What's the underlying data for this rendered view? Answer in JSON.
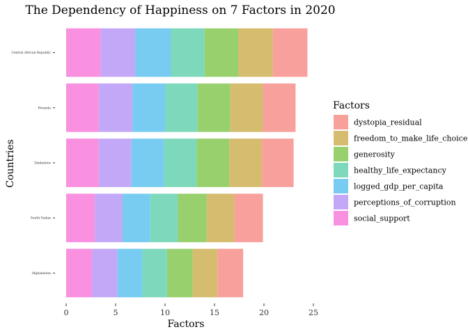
{
  "chart_data": {
    "type": "bar",
    "orientation": "horizontal",
    "stacked": true,
    "title": "The Dependency of Happiness on 7 Factors in 2020",
    "xlabel": "Factors",
    "ylabel": "Countries",
    "xlim": [
      0,
      25
    ],
    "xticks": [
      0,
      5,
      10,
      15,
      20,
      25
    ],
    "grid": false,
    "legend_position": "right",
    "legend_title": "Factors",
    "categories": [
      "Central African Republic",
      "Rwanda",
      "Zimbabwe",
      "South Sudan",
      "Afghanistan"
    ],
    "series": [
      {
        "name": "social_support",
        "color": "#F990E0",
        "values": [
          3.5,
          3.3,
          3.3,
          2.9,
          2.6
        ]
      },
      {
        "name": "perceptions_of_corruption",
        "color": "#C3A8F8",
        "values": [
          3.5,
          3.4,
          3.3,
          2.8,
          2.6
        ]
      },
      {
        "name": "logged_gdp_per_capita",
        "color": "#78CCF2",
        "values": [
          3.6,
          3.3,
          3.3,
          2.8,
          2.5
        ]
      },
      {
        "name": "healthy_life_expectancy",
        "color": "#7DD8BC",
        "values": [
          3.4,
          3.3,
          3.3,
          2.8,
          2.5
        ]
      },
      {
        "name": "generosity",
        "color": "#98D06E",
        "values": [
          3.4,
          3.3,
          3.3,
          2.9,
          2.6
        ]
      },
      {
        "name": "freedom_to_make_life_choices",
        "color": "#D6BC6E",
        "values": [
          3.5,
          3.3,
          3.3,
          2.8,
          2.5
        ]
      },
      {
        "name": "dystopia_residual",
        "color": "#F8A19C",
        "values": [
          3.5,
          3.3,
          3.2,
          2.9,
          2.6
        ]
      }
    ],
    "legend_order": [
      "dystopia_residual",
      "freedom_to_make_life_choices",
      "generosity",
      "healthy_life_expectancy",
      "logged_gdp_per_capita",
      "perceptions_of_corruption",
      "social_support"
    ]
  }
}
